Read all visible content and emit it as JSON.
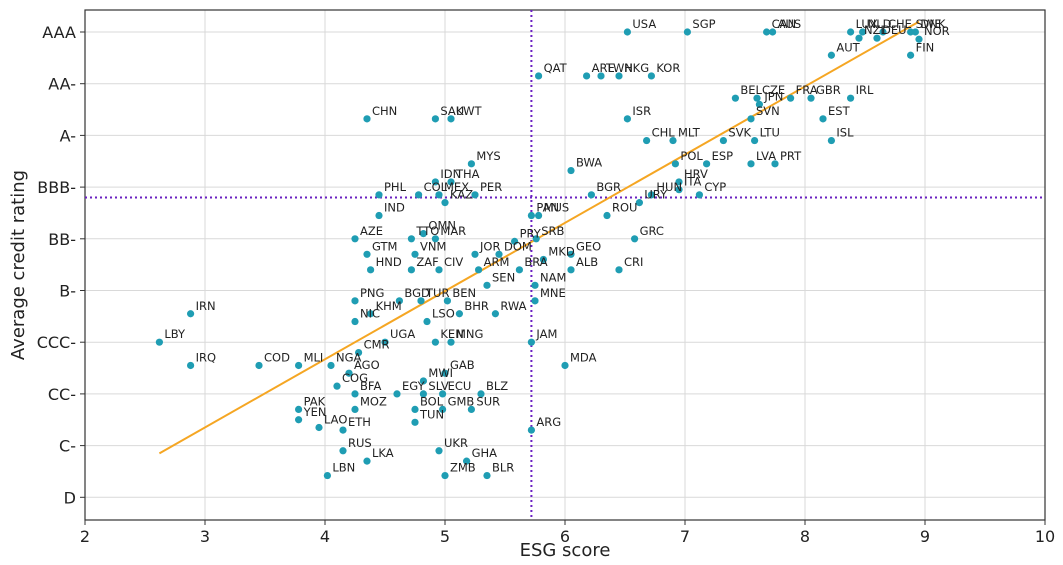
{
  "chart_data": {
    "type": "scatter",
    "xlabel": "ESG score",
    "ylabel": "Average credit rating",
    "xlim": [
      2,
      10
    ],
    "x_ticks": [
      "2",
      "3",
      "4",
      "5",
      "6",
      "7",
      "8",
      "9",
      "10"
    ],
    "y_ticks": [
      "AAA",
      "AA-",
      "A-",
      "BBB-",
      "BB-",
      "B-",
      "CCC-",
      "CC-",
      "C-",
      "D"
    ],
    "grid": true,
    "point_color": "#1f9db3",
    "trend_color": "#f5a623",
    "reference_line_color": "#6a1fc2",
    "reference_lines": {
      "x": 5.72,
      "y_rating_index": 3.2
    },
    "trend_line": {
      "x_start": 2.62,
      "y_start_index": 8.15,
      "x_end": 8.95,
      "y_end_index": -0.2
    },
    "points": [
      {
        "label": "USA",
        "x": 6.52,
        "y": 0.0
      },
      {
        "label": "SGP",
        "x": 7.02,
        "y": 0.0
      },
      {
        "label": "CAN",
        "x": 7.68,
        "y": 0.0
      },
      {
        "label": "AUS",
        "x": 7.73,
        "y": 0.0
      },
      {
        "label": "LUX",
        "x": 8.38,
        "y": 0.0
      },
      {
        "label": "NLD",
        "x": 8.48,
        "y": 0.0
      },
      {
        "label": "CHE",
        "x": 8.65,
        "y": 0.0
      },
      {
        "label": "SWE",
        "x": 8.88,
        "y": 0.0
      },
      {
        "label": "DNK",
        "x": 8.92,
        "y": 0.0
      },
      {
        "label": "NZL",
        "x": 8.45,
        "y": 0.12
      },
      {
        "label": "DEU",
        "x": 8.6,
        "y": 0.12
      },
      {
        "label": "NOR",
        "x": 8.95,
        "y": 0.14
      },
      {
        "label": "FIN",
        "x": 8.88,
        "y": 0.45
      },
      {
        "label": "AUT",
        "x": 8.22,
        "y": 0.45
      },
      {
        "label": "HKG",
        "x": 6.45,
        "y": 0.85
      },
      {
        "label": "QAT",
        "x": 5.78,
        "y": 0.85
      },
      {
        "label": "ARE",
        "x": 6.18,
        "y": 0.85
      },
      {
        "label": "TWN",
        "x": 6.3,
        "y": 0.85
      },
      {
        "label": "KOR",
        "x": 6.72,
        "y": 0.85
      },
      {
        "label": "BEL",
        "x": 7.42,
        "y": 1.28
      },
      {
        "label": "CZE",
        "x": 7.6,
        "y": 1.28
      },
      {
        "label": "JPN",
        "x": 7.62,
        "y": 1.4
      },
      {
        "label": "FRA",
        "x": 7.88,
        "y": 1.28
      },
      {
        "label": "GBR",
        "x": 8.05,
        "y": 1.28
      },
      {
        "label": "IRL",
        "x": 8.38,
        "y": 1.28
      },
      {
        "label": "EST",
        "x": 8.15,
        "y": 1.68
      },
      {
        "label": "ISR",
        "x": 6.52,
        "y": 1.68
      },
      {
        "label": "SVN",
        "x": 7.55,
        "y": 1.68
      },
      {
        "label": "CHN",
        "x": 4.35,
        "y": 1.68
      },
      {
        "label": "SAU",
        "x": 4.92,
        "y": 1.68
      },
      {
        "label": "KWT",
        "x": 5.05,
        "y": 1.68
      },
      {
        "label": "CHL",
        "x": 6.68,
        "y": 2.1
      },
      {
        "label": "MLT",
        "x": 6.9,
        "y": 2.1
      },
      {
        "label": "SVK",
        "x": 7.32,
        "y": 2.1
      },
      {
        "label": "LTU",
        "x": 7.58,
        "y": 2.1
      },
      {
        "label": "ISL",
        "x": 8.22,
        "y": 2.1
      },
      {
        "label": "POL",
        "x": 6.92,
        "y": 2.55
      },
      {
        "label": "ESP",
        "x": 7.18,
        "y": 2.55
      },
      {
        "label": "LVA",
        "x": 7.55,
        "y": 2.55
      },
      {
        "label": "PRT",
        "x": 7.75,
        "y": 2.55
      },
      {
        "label": "MYS",
        "x": 5.22,
        "y": 2.55
      },
      {
        "label": "BWA",
        "x": 6.05,
        "y": 2.68
      },
      {
        "label": "HRV",
        "x": 6.95,
        "y": 2.9
      },
      {
        "label": "IDN",
        "x": 4.92,
        "y": 2.9
      },
      {
        "label": "THA",
        "x": 5.05,
        "y": 2.9
      },
      {
        "label": "ITA",
        "x": 6.95,
        "y": 3.05
      },
      {
        "label": "MEX",
        "x": 4.95,
        "y": 3.15
      },
      {
        "label": "PER",
        "x": 5.25,
        "y": 3.15
      },
      {
        "label": "PHL",
        "x": 4.45,
        "y": 3.15
      },
      {
        "label": "BGR",
        "x": 6.22,
        "y": 3.15
      },
      {
        "label": "HUN",
        "x": 6.72,
        "y": 3.15
      },
      {
        "label": "CYP",
        "x": 7.12,
        "y": 3.15
      },
      {
        "label": "COL",
        "x": 4.78,
        "y": 3.15
      },
      {
        "label": "KAZ",
        "x": 5.0,
        "y": 3.3
      },
      {
        "label": "URY",
        "x": 6.62,
        "y": 3.3
      },
      {
        "label": "ROU",
        "x": 6.35,
        "y": 3.55
      },
      {
        "label": "PAN",
        "x": 5.72,
        "y": 3.55
      },
      {
        "label": "MUS",
        "x": 5.78,
        "y": 3.55
      },
      {
        "label": "IND",
        "x": 4.45,
        "y": 3.55
      },
      {
        "label": "OMN",
        "x": 4.82,
        "y": 3.9
      },
      {
        "label": "AZE",
        "x": 4.25,
        "y": 4.0
      },
      {
        "label": "TTO",
        "x": 4.72,
        "y": 4.0
      },
      {
        "label": "MAR",
        "x": 4.92,
        "y": 4.0
      },
      {
        "label": "SRB",
        "x": 5.76,
        "y": 4.0
      },
      {
        "label": "PRY",
        "x": 5.58,
        "y": 4.05
      },
      {
        "label": "GRC",
        "x": 6.58,
        "y": 4.0
      },
      {
        "label": "GTM",
        "x": 4.35,
        "y": 4.3
      },
      {
        "label": "VNM",
        "x": 4.75,
        "y": 4.3
      },
      {
        "label": "DOM",
        "x": 5.45,
        "y": 4.3
      },
      {
        "label": "JOR",
        "x": 5.25,
        "y": 4.3
      },
      {
        "label": "GEO",
        "x": 6.05,
        "y": 4.3
      },
      {
        "label": "MKD",
        "x": 5.82,
        "y": 4.4
      },
      {
        "label": "BRA",
        "x": 5.62,
        "y": 4.6
      },
      {
        "label": "ARM",
        "x": 5.28,
        "y": 4.6
      },
      {
        "label": "HND",
        "x": 4.38,
        "y": 4.6
      },
      {
        "label": "ZAF",
        "x": 4.72,
        "y": 4.6
      },
      {
        "label": "CIV",
        "x": 4.95,
        "y": 4.6
      },
      {
        "label": "ALB",
        "x": 6.05,
        "y": 4.6
      },
      {
        "label": "CRI",
        "x": 6.45,
        "y": 4.6
      },
      {
        "label": "SEN",
        "x": 5.35,
        "y": 4.9
      },
      {
        "label": "NAM",
        "x": 5.75,
        "y": 4.9
      },
      {
        "label": "BGD",
        "x": 4.62,
        "y": 5.2
      },
      {
        "label": "TUR",
        "x": 4.8,
        "y": 5.2
      },
      {
        "label": "BEN",
        "x": 5.02,
        "y": 5.2
      },
      {
        "label": "PNG",
        "x": 4.25,
        "y": 5.2
      },
      {
        "label": "MNE",
        "x": 5.75,
        "y": 5.2
      },
      {
        "label": "BHR",
        "x": 5.12,
        "y": 5.45
      },
      {
        "label": "RWA",
        "x": 5.42,
        "y": 5.45
      },
      {
        "label": "KHM",
        "x": 4.38,
        "y": 5.45
      },
      {
        "label": "NIC",
        "x": 4.25,
        "y": 5.6
      },
      {
        "label": "LSO",
        "x": 4.85,
        "y": 5.6
      },
      {
        "label": "IRN",
        "x": 2.88,
        "y": 5.45
      },
      {
        "label": "LBY",
        "x": 2.62,
        "y": 6.0
      },
      {
        "label": "UGA",
        "x": 4.5,
        "y": 6.0
      },
      {
        "label": "KEN",
        "x": 4.92,
        "y": 6.0
      },
      {
        "label": "MNG",
        "x": 5.05,
        "y": 6.0
      },
      {
        "label": "JAM",
        "x": 5.72,
        "y": 6.0
      },
      {
        "label": "CMR",
        "x": 4.28,
        "y": 6.2
      },
      {
        "label": "IRQ",
        "x": 2.88,
        "y": 6.45
      },
      {
        "label": "COD",
        "x": 3.45,
        "y": 6.45
      },
      {
        "label": "MLI",
        "x": 3.78,
        "y": 6.45
      },
      {
        "label": "NGA",
        "x": 4.05,
        "y": 6.45
      },
      {
        "label": "AGO",
        "x": 4.2,
        "y": 6.6
      },
      {
        "label": "GAB",
        "x": 5.0,
        "y": 6.6
      },
      {
        "label": "MDA",
        "x": 6.0,
        "y": 6.45
      },
      {
        "label": "MWI",
        "x": 4.82,
        "y": 6.75
      },
      {
        "label": "COG",
        "x": 4.1,
        "y": 6.85
      },
      {
        "label": "SLV",
        "x": 4.82,
        "y": 7.0
      },
      {
        "label": "BFA",
        "x": 4.25,
        "y": 7.0
      },
      {
        "label": "EGY",
        "x": 4.6,
        "y": 7.0
      },
      {
        "label": "ECU",
        "x": 4.98,
        "y": 7.0
      },
      {
        "label": "BLZ",
        "x": 5.3,
        "y": 7.0
      },
      {
        "label": "PAK",
        "x": 3.78,
        "y": 7.3
      },
      {
        "label": "MOZ",
        "x": 4.25,
        "y": 7.3
      },
      {
        "label": "BOL",
        "x": 4.75,
        "y": 7.3
      },
      {
        "label": "GMB",
        "x": 4.98,
        "y": 7.3
      },
      {
        "label": "SUR",
        "x": 5.22,
        "y": 7.3
      },
      {
        "label": "YEN",
        "x": 3.78,
        "y": 7.5
      },
      {
        "label": "LAO",
        "x": 3.95,
        "y": 7.65
      },
      {
        "label": "TUN",
        "x": 4.75,
        "y": 7.55
      },
      {
        "label": "ETH",
        "x": 4.15,
        "y": 7.7
      },
      {
        "label": "ARG",
        "x": 5.72,
        "y": 7.7
      },
      {
        "label": "UKR",
        "x": 4.95,
        "y": 8.1
      },
      {
        "label": "RUS",
        "x": 4.15,
        "y": 8.1
      },
      {
        "label": "LKA",
        "x": 4.35,
        "y": 8.3
      },
      {
        "label": "GHA",
        "x": 5.18,
        "y": 8.3
      },
      {
        "label": "LBN",
        "x": 4.02,
        "y": 8.58
      },
      {
        "label": "ZMB",
        "x": 5.0,
        "y": 8.58
      },
      {
        "label": "BLR",
        "x": 5.35,
        "y": 8.58
      }
    ]
  }
}
